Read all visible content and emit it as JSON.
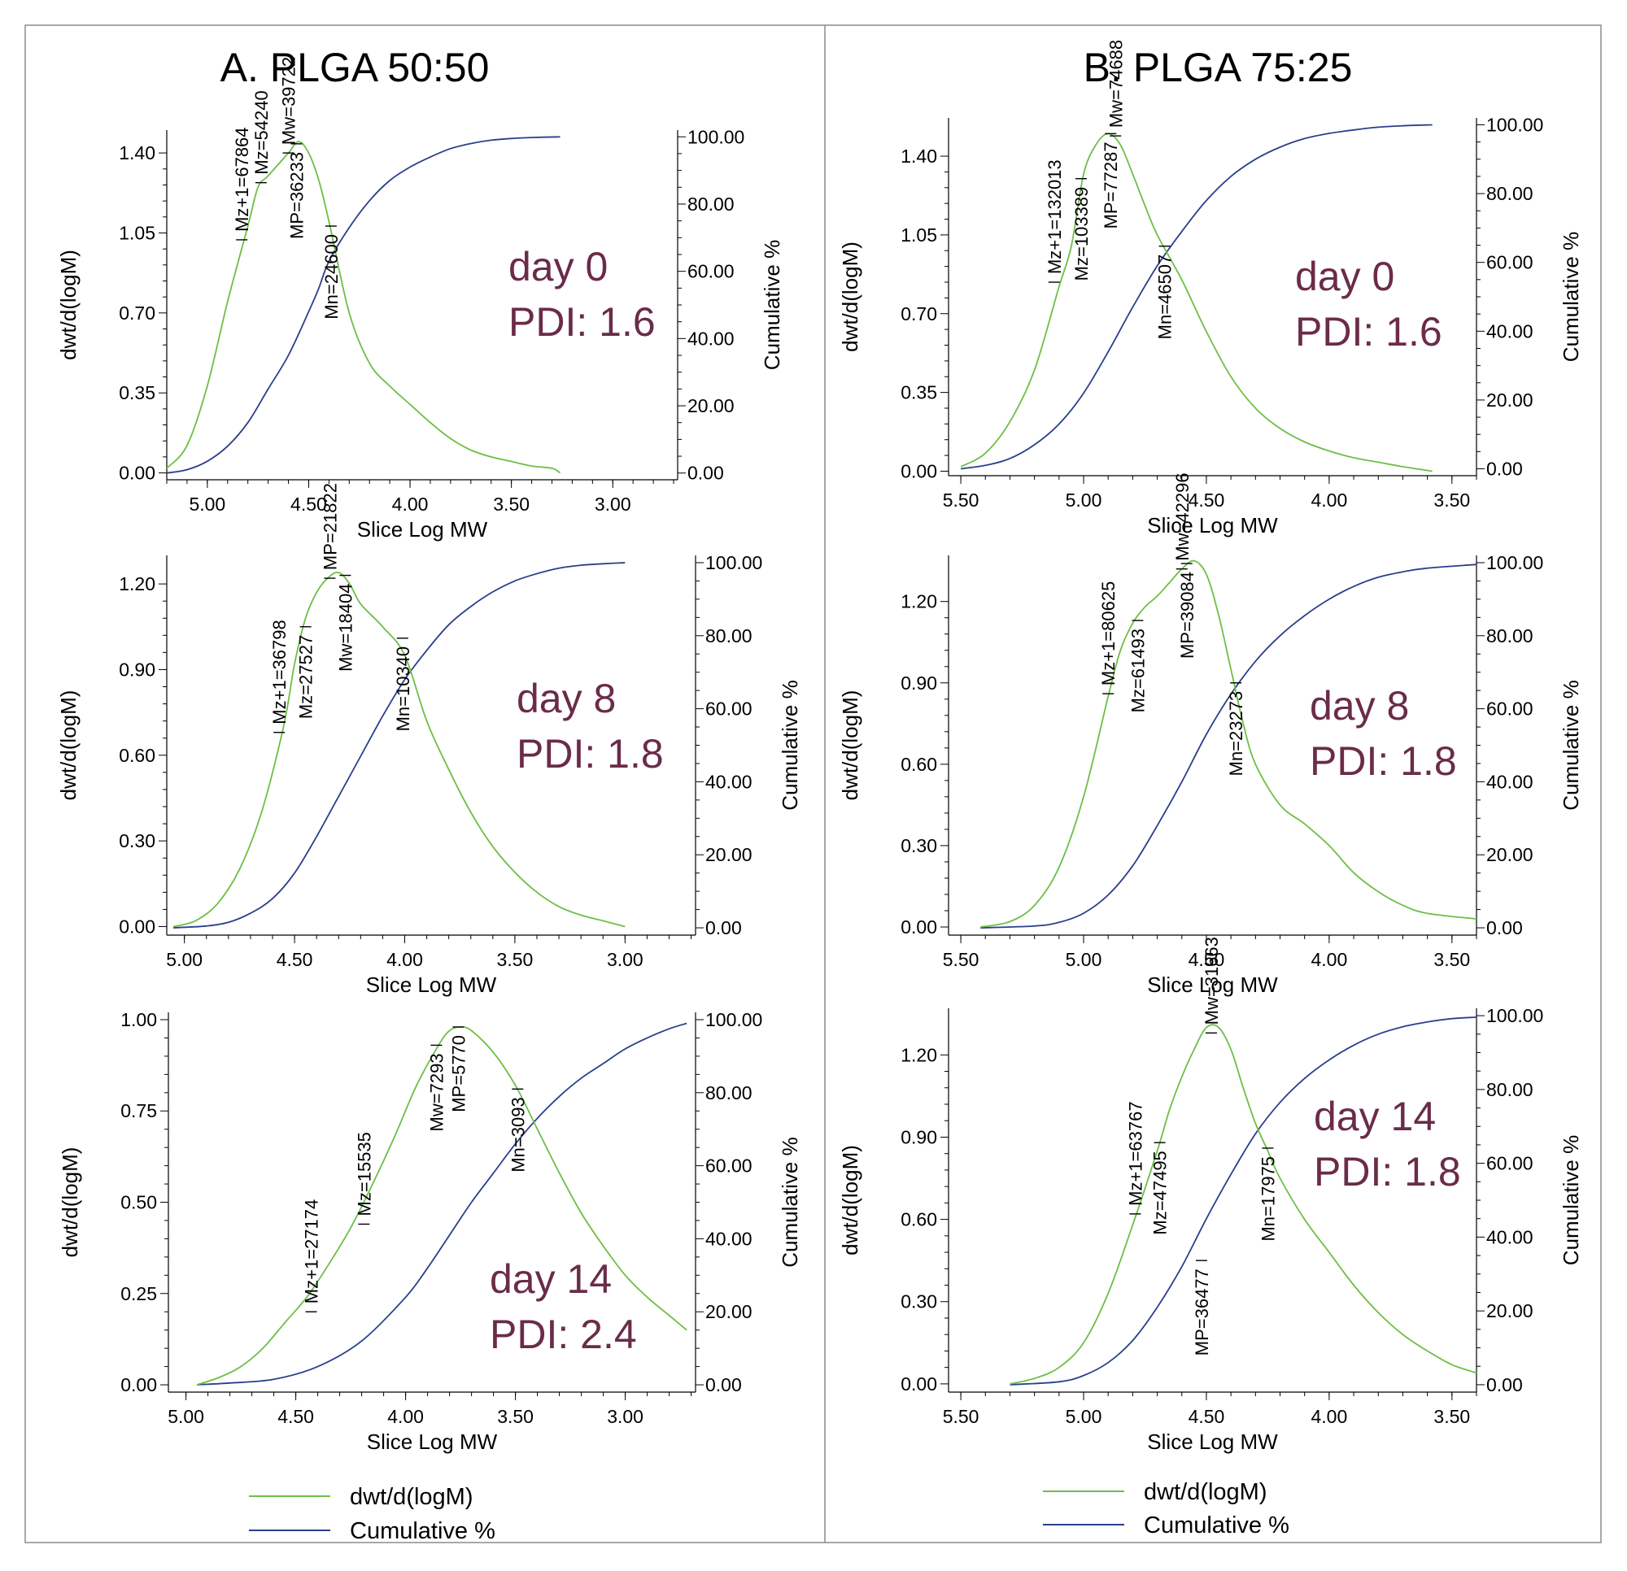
{
  "figure": {
    "colors": {
      "differential": "#6dbf45",
      "cumulative": "#2a3f8c",
      "annotation": "#6a2c48"
    },
    "legend": {
      "left": {
        "dwt_label": "dwt/d(logM)",
        "cum_label": "Cumulative %"
      },
      "right": {
        "dwt_label": "dwt/d(logM)",
        "cum_label": "Cumulative %"
      }
    }
  },
  "chart_data": [
    {
      "type": "line",
      "group": "A",
      "group_title": "A. PLGA 50:50",
      "day_label": "day 0",
      "pdi_label": "PDI: 1.6",
      "xlabel": "Slice Log MW",
      "ylabel": "dwt/d(logM)",
      "y2label": "Cumulative %",
      "xlim": [
        5.2,
        2.68
      ],
      "ylim": [
        -0.03,
        1.5
      ],
      "y2lim": [
        -2.0,
        102.0
      ],
      "xticks": [
        "5.00",
        "4.50",
        "4.00",
        "3.50",
        "3.00"
      ],
      "yticks": [
        "0.00",
        "0.35",
        "0.70",
        "1.05",
        "1.40"
      ],
      "y2ticks": [
        "0.00",
        "20.00",
        "40.00",
        "60.00",
        "80.00",
        "100.00"
      ],
      "dwt": {
        "x": [
          5.2,
          5.1,
          5.0,
          4.9,
          4.8,
          4.75,
          4.7,
          4.6,
          4.55,
          4.5,
          4.45,
          4.4,
          4.3,
          4.2,
          4.1,
          4.0,
          3.9,
          3.8,
          3.7,
          3.6,
          3.5,
          3.4,
          3.3,
          3.26
        ],
        "y": [
          0.02,
          0.12,
          0.38,
          0.75,
          1.08,
          1.25,
          1.3,
          1.4,
          1.45,
          1.4,
          1.28,
          1.1,
          0.7,
          0.48,
          0.38,
          0.3,
          0.22,
          0.15,
          0.1,
          0.07,
          0.05,
          0.03,
          0.02,
          0.0
        ]
      },
      "cumulative": {
        "x": [
          5.2,
          5.1,
          5.0,
          4.9,
          4.8,
          4.7,
          4.6,
          4.5,
          4.45,
          4.4,
          4.3,
          4.2,
          4.1,
          4.0,
          3.9,
          3.8,
          3.7,
          3.6,
          3.5,
          3.4,
          3.26
        ],
        "y": [
          0.0,
          1.0,
          3.5,
          8.0,
          15.0,
          25.0,
          35.0,
          48.0,
          55.0,
          63.0,
          73.0,
          81.0,
          87.0,
          91.0,
          94.0,
          96.5,
          98.0,
          99.0,
          99.5,
          99.8,
          100.0
        ]
      },
      "markers": [
        {
          "label": "Mz+1=67864",
          "x": 4.83,
          "y": 1.02,
          "side": "up"
        },
        {
          "label": "Mz=54240",
          "x": 4.735,
          "y": 1.27,
          "side": "up"
        },
        {
          "label": "Mw=39722",
          "x": 4.6,
          "y": 1.4,
          "side": "up"
        },
        {
          "label": "MP=36233",
          "x": 4.56,
          "y": 1.44,
          "side": "down"
        },
        {
          "label": "Mn=24600",
          "x": 4.39,
          "y": 1.08,
          "side": "down"
        }
      ]
    },
    {
      "type": "line",
      "group": "A",
      "day_label": "day 8",
      "pdi_label": "PDI: 1.8",
      "xlabel": "Slice Log MW",
      "ylabel": "dwt/d(logM)",
      "y2label": "Cumulative %",
      "xlim": [
        5.08,
        2.68
      ],
      "ylim": [
        -0.03,
        1.3
      ],
      "y2lim": [
        -2.0,
        102.0
      ],
      "xticks": [
        "5.00",
        "4.50",
        "4.00",
        "3.50",
        "3.00"
      ],
      "yticks": [
        "0.00",
        "0.30",
        "0.60",
        "0.90",
        "1.20"
      ],
      "y2ticks": [
        "0.00",
        "20.00",
        "40.00",
        "60.00",
        "80.00",
        "100.00"
      ],
      "dwt": {
        "x": [
          5.05,
          4.95,
          4.85,
          4.75,
          4.65,
          4.55,
          4.5,
          4.45,
          4.4,
          4.35,
          4.3,
          4.25,
          4.2,
          4.1,
          4.0,
          3.9,
          3.8,
          3.7,
          3.6,
          3.5,
          3.4,
          3.3,
          3.2,
          3.1,
          3.0
        ],
        "y": [
          0.0,
          0.02,
          0.08,
          0.2,
          0.4,
          0.7,
          0.92,
          1.08,
          1.17,
          1.22,
          1.24,
          1.2,
          1.13,
          1.05,
          0.95,
          0.72,
          0.55,
          0.4,
          0.28,
          0.19,
          0.12,
          0.07,
          0.04,
          0.02,
          0.0
        ]
      },
      "cumulative": {
        "x": [
          5.05,
          4.9,
          4.8,
          4.7,
          4.6,
          4.5,
          4.4,
          4.3,
          4.2,
          4.1,
          4.0,
          3.9,
          3.8,
          3.7,
          3.6,
          3.5,
          3.4,
          3.3,
          3.2,
          3.1,
          3.0
        ],
        "y": [
          0.0,
          0.5,
          1.5,
          4.0,
          8.0,
          15.0,
          25.0,
          36.0,
          47.0,
          58.0,
          68.0,
          76.0,
          83.0,
          88.0,
          92.0,
          95.0,
          97.0,
          98.5,
          99.3,
          99.7,
          100.0
        ]
      },
      "markers": [
        {
          "label": "Mz+1=36798",
          "x": 4.57,
          "y": 0.68,
          "side": "up"
        },
        {
          "label": "Mz=27527",
          "x": 4.45,
          "y": 1.05,
          "side": "down"
        },
        {
          "label": "MP=21822",
          "x": 4.34,
          "y": 1.22,
          "side": "up"
        },
        {
          "label": "Mw=18404",
          "x": 4.27,
          "y": 1.23,
          "side": "down"
        },
        {
          "label": "Mn=10340",
          "x": 4.01,
          "y": 1.01,
          "side": "down"
        }
      ]
    },
    {
      "type": "line",
      "group": "A",
      "day_label": "day 14",
      "pdi_label": "PDI: 2.4",
      "xlabel": "Slice Log MW",
      "ylabel": "dwt/d(logM)",
      "y2label": "Cumulative %",
      "xlim": [
        5.08,
        2.68
      ],
      "ylim": [
        -0.02,
        1.02
      ],
      "y2lim": [
        -2.0,
        102.0
      ],
      "xticks": [
        "5.00",
        "4.50",
        "4.00",
        "3.50",
        "3.00"
      ],
      "yticks": [
        "0.00",
        "0.25",
        "0.50",
        "0.75",
        "1.00"
      ],
      "y2ticks": [
        "0.00",
        "20.00",
        "40.00",
        "60.00",
        "80.00",
        "100.00"
      ],
      "dwt": {
        "x": [
          4.95,
          4.85,
          4.75,
          4.65,
          4.55,
          4.45,
          4.35,
          4.25,
          4.15,
          4.05,
          3.95,
          3.85,
          3.8,
          3.75,
          3.7,
          3.6,
          3.5,
          3.4,
          3.3,
          3.2,
          3.1,
          3.0,
          2.9,
          2.8,
          2.72
        ],
        "y": [
          0.0,
          0.02,
          0.05,
          0.1,
          0.17,
          0.24,
          0.33,
          0.43,
          0.55,
          0.68,
          0.82,
          0.93,
          0.97,
          0.98,
          0.97,
          0.91,
          0.82,
          0.7,
          0.58,
          0.47,
          0.38,
          0.3,
          0.24,
          0.19,
          0.15
        ]
      },
      "cumulative": {
        "x": [
          4.95,
          4.8,
          4.6,
          4.4,
          4.2,
          4.0,
          3.9,
          3.8,
          3.7,
          3.6,
          3.5,
          3.4,
          3.3,
          3.2,
          3.1,
          3.0,
          2.9,
          2.8,
          2.72
        ],
        "y": [
          0.0,
          0.5,
          1.5,
          5.0,
          12.0,
          24.0,
          32.0,
          41.0,
          50.0,
          58.0,
          66.0,
          73.0,
          79.0,
          84.0,
          88.0,
          92.0,
          95.0,
          97.5,
          99.0
        ]
      },
      "markers": [
        {
          "label": "Mz+1=27174",
          "x": 4.43,
          "y": 0.2,
          "side": "up"
        },
        {
          "label": "Mz=15535",
          "x": 4.19,
          "y": 0.44,
          "side": "up"
        },
        {
          "label": "Mw=7293",
          "x": 3.86,
          "y": 0.93,
          "side": "down"
        },
        {
          "label": "MP=5770",
          "x": 3.76,
          "y": 0.98,
          "side": "down"
        },
        {
          "label": "Mn=3093",
          "x": 3.49,
          "y": 0.81,
          "side": "down"
        }
      ]
    },
    {
      "type": "line",
      "group": "B",
      "group_title": "B. PLGA 75:25",
      "day_label": "day 0",
      "pdi_label": "PDI: 1.6",
      "xlabel": "Slice Log MW",
      "ylabel": "dwt/d(logM)",
      "y2label": "Cumulative %",
      "xlim": [
        5.55,
        3.4
      ],
      "ylim": [
        -0.02,
        1.57
      ],
      "y2lim": [
        -2.0,
        102.0
      ],
      "xticks": [
        "5.50",
        "5.00",
        "4.50",
        "4.00",
        "3.50"
      ],
      "yticks": [
        "0.00",
        "0.35",
        "0.70",
        "1.05",
        "1.40"
      ],
      "y2ticks": [
        "0.00",
        "20.00",
        "40.00",
        "60.00",
        "80.00",
        "100.00"
      ],
      "dwt": {
        "x": [
          5.5,
          5.4,
          5.3,
          5.2,
          5.1,
          5.05,
          5.0,
          4.95,
          4.9,
          4.85,
          4.8,
          4.75,
          4.7,
          4.6,
          4.5,
          4.4,
          4.3,
          4.2,
          4.1,
          4.0,
          3.9,
          3.8,
          3.7,
          3.58
        ],
        "y": [
          0.02,
          0.08,
          0.22,
          0.45,
          0.82,
          1.0,
          1.32,
          1.45,
          1.5,
          1.45,
          1.32,
          1.18,
          1.05,
          0.85,
          0.62,
          0.42,
          0.28,
          0.19,
          0.13,
          0.09,
          0.06,
          0.04,
          0.02,
          0.0
        ]
      },
      "cumulative": {
        "x": [
          5.5,
          5.4,
          5.3,
          5.2,
          5.1,
          5.0,
          4.9,
          4.8,
          4.7,
          4.6,
          4.5,
          4.4,
          4.3,
          4.2,
          4.1,
          4.0,
          3.9,
          3.8,
          3.7,
          3.58
        ],
        "y": [
          0.0,
          1.0,
          3.0,
          7.0,
          13.0,
          22.0,
          34.0,
          47.0,
          59.0,
          69.0,
          78.0,
          85.0,
          90.0,
          93.5,
          96.0,
          97.5,
          98.5,
          99.3,
          99.7,
          100.0
        ]
      },
      "markers": [
        {
          "label": "Mz+1=132013",
          "x": 5.12,
          "y": 0.84,
          "side": "up"
        },
        {
          "label": "Mz=103389",
          "x": 5.01,
          "y": 1.3,
          "side": "down"
        },
        {
          "label": "MP=77287",
          "x": 4.89,
          "y": 1.5,
          "side": "down"
        },
        {
          "label": "Mw=74688",
          "x": 4.87,
          "y": 1.49,
          "side": "up"
        },
        {
          "label": "Mn=46507",
          "x": 4.67,
          "y": 1.0,
          "side": "down"
        }
      ]
    },
    {
      "type": "line",
      "group": "B",
      "day_label": "day 8",
      "pdi_label": "PDI: 1.8",
      "xlabel": "Slice Log MW",
      "ylabel": "dwt/d(logM)",
      "y2label": "Cumulative %",
      "xlim": [
        5.55,
        3.4
      ],
      "ylim": [
        -0.03,
        1.37
      ],
      "y2lim": [
        -2.0,
        102.0
      ],
      "xticks": [
        "5.50",
        "5.00",
        "4.50",
        "4.00",
        "3.50"
      ],
      "yticks": [
        "0.00",
        "0.30",
        "0.60",
        "0.90",
        "1.20"
      ],
      "y2ticks": [
        "0.00",
        "20.00",
        "40.00",
        "60.00",
        "80.00",
        "100.00"
      ],
      "dwt": {
        "x": [
          5.42,
          5.3,
          5.2,
          5.1,
          5.0,
          4.9,
          4.85,
          4.8,
          4.75,
          4.7,
          4.65,
          4.6,
          4.55,
          4.5,
          4.45,
          4.4,
          4.35,
          4.3,
          4.2,
          4.1,
          4.0,
          3.9,
          3.8,
          3.7,
          3.6,
          3.4
        ],
        "y": [
          0.0,
          0.02,
          0.08,
          0.22,
          0.48,
          0.85,
          1.02,
          1.12,
          1.18,
          1.22,
          1.27,
          1.32,
          1.35,
          1.3,
          1.15,
          0.95,
          0.75,
          0.6,
          0.45,
          0.38,
          0.3,
          0.2,
          0.13,
          0.08,
          0.05,
          0.03
        ]
      },
      "cumulative": {
        "x": [
          5.42,
          5.2,
          5.1,
          5.0,
          4.9,
          4.8,
          4.7,
          4.6,
          4.5,
          4.4,
          4.3,
          4.2,
          4.1,
          4.0,
          3.9,
          3.8,
          3.7,
          3.6,
          3.4
        ],
        "y": [
          0.0,
          0.5,
          1.5,
          4.0,
          9.0,
          17.0,
          28.0,
          40.0,
          53.0,
          64.0,
          73.0,
          80.0,
          85.5,
          90.0,
          93.5,
          96.0,
          97.5,
          98.5,
          99.5
        ]
      },
      "markers": [
        {
          "label": "Mz+1=80625",
          "x": 4.9,
          "y": 0.86,
          "side": "up"
        },
        {
          "label": "Mz=61493",
          "x": 4.78,
          "y": 1.13,
          "side": "down"
        },
        {
          "label": "Mw=42296",
          "x": 4.6,
          "y": 1.32,
          "side": "up"
        },
        {
          "label": "MP=39084",
          "x": 4.58,
          "y": 1.34,
          "side": "down"
        },
        {
          "label": "Mn=23273",
          "x": 4.38,
          "y": 0.9,
          "side": "down"
        }
      ]
    },
    {
      "type": "line",
      "group": "B",
      "day_label": "day 14",
      "pdi_label": "PDI: 1.8",
      "xlabel": "Slice Log MW",
      "ylabel": "dwt/d(logM)",
      "y2label": "Cumulative %",
      "xlim": [
        5.55,
        3.4
      ],
      "ylim": [
        -0.03,
        1.37
      ],
      "y2lim": [
        -2.0,
        102.0
      ],
      "xticks": [
        "5.50",
        "5.00",
        "4.50",
        "4.00",
        "3.50"
      ],
      "yticks": [
        "0.00",
        "0.30",
        "0.60",
        "0.90",
        "1.20"
      ],
      "y2ticks": [
        "0.00",
        "20.00",
        "40.00",
        "60.00",
        "80.00",
        "100.00"
      ],
      "dwt": {
        "x": [
          5.3,
          5.2,
          5.1,
          5.0,
          4.9,
          4.8,
          4.7,
          4.65,
          4.6,
          4.55,
          4.5,
          4.45,
          4.4,
          4.35,
          4.3,
          4.25,
          4.2,
          4.1,
          4.0,
          3.9,
          3.8,
          3.7,
          3.6,
          3.5,
          3.4
        ],
        "y": [
          0.0,
          0.02,
          0.06,
          0.15,
          0.33,
          0.58,
          0.85,
          1.0,
          1.12,
          1.22,
          1.3,
          1.3,
          1.22,
          1.08,
          0.95,
          0.85,
          0.75,
          0.6,
          0.48,
          0.36,
          0.26,
          0.18,
          0.12,
          0.07,
          0.04
        ]
      },
      "cumulative": {
        "x": [
          5.3,
          5.1,
          5.0,
          4.9,
          4.8,
          4.7,
          4.6,
          4.5,
          4.4,
          4.3,
          4.2,
          4.1,
          4.0,
          3.9,
          3.8,
          3.7,
          3.6,
          3.5,
          3.4
        ],
        "y": [
          0.0,
          0.8,
          2.5,
          6.0,
          12.0,
          21.0,
          32.0,
          45.0,
          57.0,
          68.0,
          76.5,
          83.0,
          88.0,
          92.0,
          95.0,
          97.0,
          98.3,
          99.2,
          99.6
        ]
      },
      "markers": [
        {
          "label": "Mz+1=63767",
          "x": 4.79,
          "y": 0.62,
          "side": "up"
        },
        {
          "label": "Mz=47495",
          "x": 4.69,
          "y": 0.88,
          "side": "down"
        },
        {
          "label": "MP=36477",
          "x": 4.52,
          "y": 0.45,
          "side": "down"
        },
        {
          "label": "Mw=31663",
          "x": 4.48,
          "y": 1.28,
          "side": "up"
        },
        {
          "label": "Mn=17975",
          "x": 4.25,
          "y": 0.86,
          "side": "down"
        }
      ]
    }
  ]
}
